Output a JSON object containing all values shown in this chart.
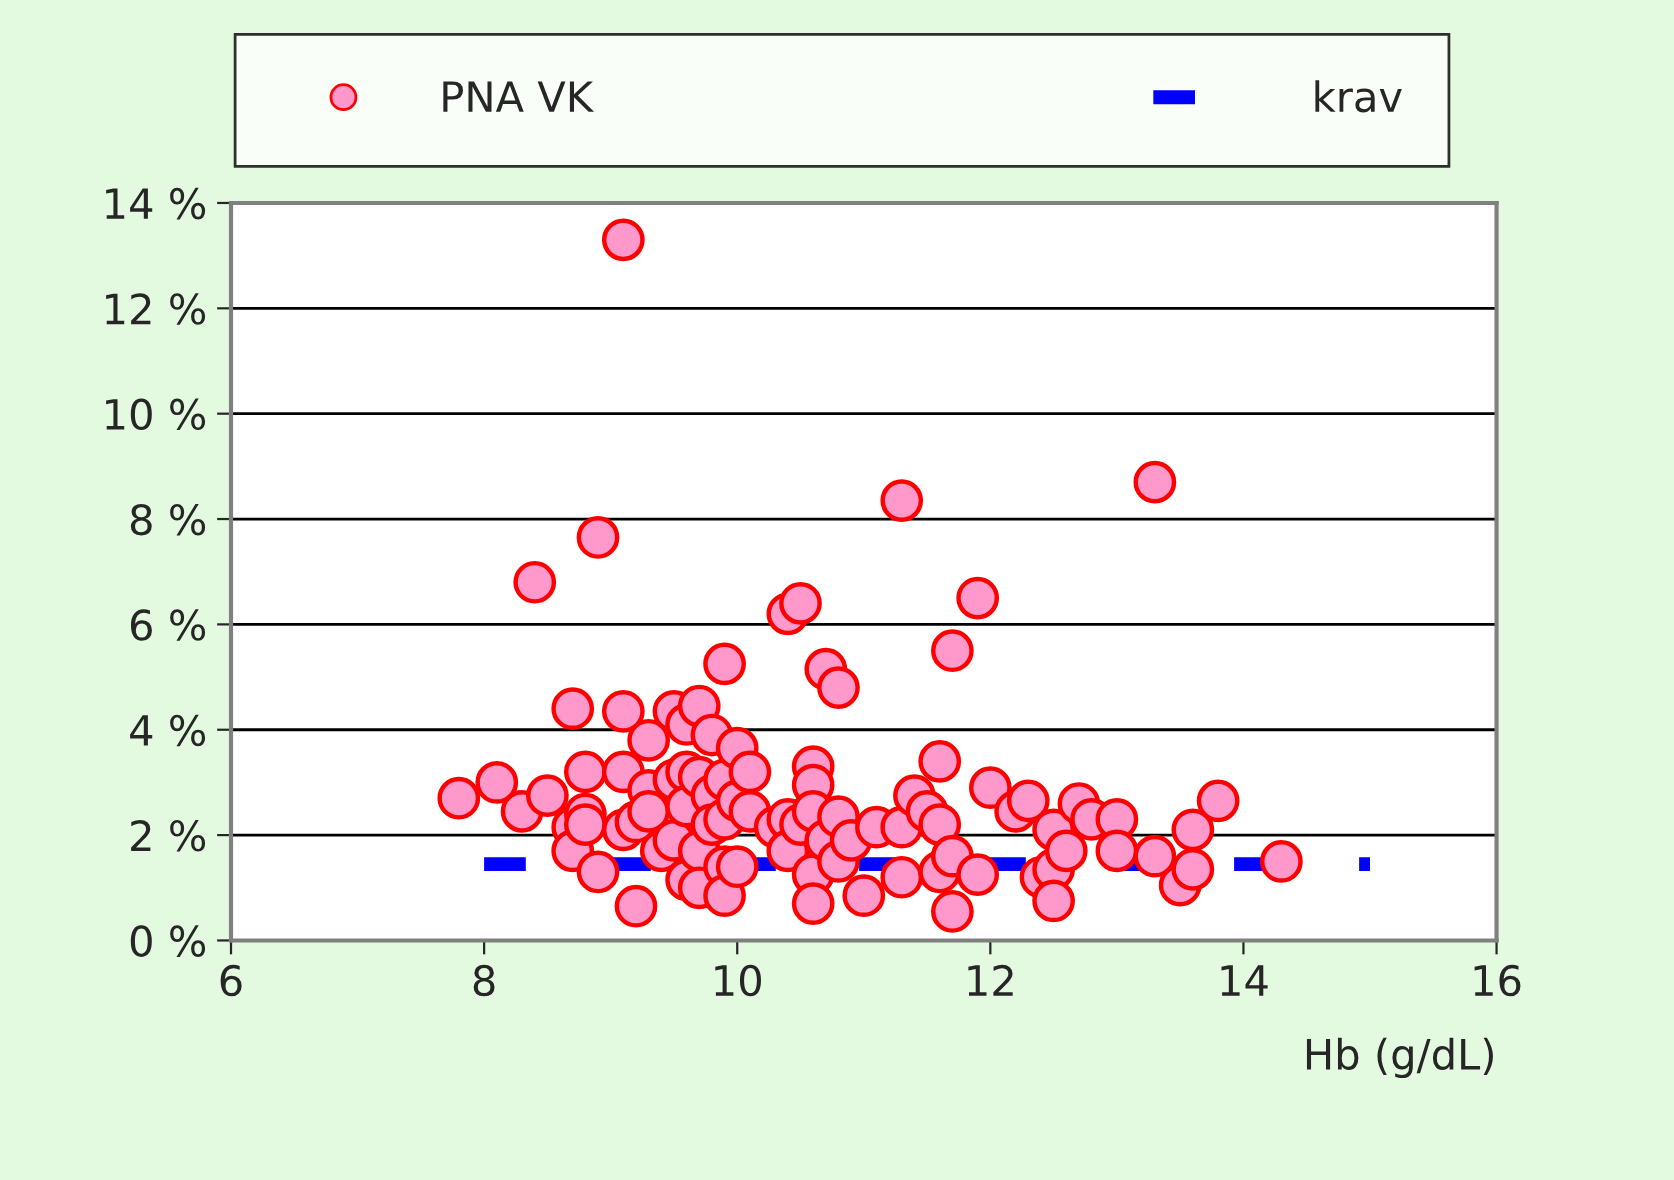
{
  "chart_data": {
    "type": "scatter",
    "xlabel": "Hb (g/dL)",
    "xlim": [
      6,
      16
    ],
    "xticks": [
      6,
      8,
      10,
      12,
      14,
      16
    ],
    "ylim": [
      0,
      14
    ],
    "yticks": [
      {
        "value": 0,
        "label": "0 %"
      },
      {
        "value": 2,
        "label": "2 %"
      },
      {
        "value": 4,
        "label": "4 %"
      },
      {
        "value": 6,
        "label": "6 %"
      },
      {
        "value": 8,
        "label": "8 %"
      },
      {
        "value": 10,
        "label": "10 %"
      },
      {
        "value": 12,
        "label": "12 %"
      },
      {
        "value": 14,
        "label": "14 %"
      }
    ],
    "grid": "y",
    "legend": "top",
    "series": [
      {
        "name": "PNA VK",
        "color": "#ff99cc",
        "marker": "circle",
        "x": [
          7.8,
          8.1,
          8.3,
          8.4,
          8.5,
          8.7,
          8.7,
          8.7,
          8.8,
          8.8,
          8.8,
          8.9,
          8.9,
          9.1,
          9.1,
          9.1,
          9.1,
          9.2,
          9.2,
          9.3,
          9.3,
          9.3,
          9.4,
          9.5,
          9.5,
          9.5,
          9.6,
          9.6,
          9.6,
          9.6,
          9.7,
          9.7,
          9.7,
          9.7,
          9.8,
          9.8,
          9.8,
          9.9,
          9.9,
          9.9,
          9.9,
          9.9,
          10.0,
          10.0,
          10.0,
          10.1,
          10.1,
          10.3,
          10.4,
          10.4,
          10.4,
          10.5,
          10.5,
          10.6,
          10.6,
          10.6,
          10.6,
          10.6,
          10.7,
          10.7,
          10.8,
          10.8,
          10.8,
          10.9,
          11.0,
          11.1,
          11.3,
          11.3,
          11.3,
          11.4,
          11.5,
          11.6,
          11.6,
          11.6,
          11.7,
          11.7,
          11.7,
          11.9,
          11.9,
          12.0,
          12.2,
          12.3,
          12.4,
          12.5,
          12.5,
          12.5,
          12.6,
          12.7,
          12.8,
          13.0,
          13.0,
          13.3,
          13.3,
          13.5,
          13.6,
          13.6,
          13.8,
          14.3
        ],
        "values": [
          2.7,
          3.0,
          2.45,
          6.8,
          2.75,
          4.4,
          2.15,
          1.7,
          3.2,
          2.4,
          2.2,
          7.65,
          1.3,
          4.35,
          3.2,
          2.1,
          13.3,
          0.65,
          2.25,
          3.8,
          2.85,
          2.45,
          1.7,
          4.35,
          3.05,
          1.9,
          4.1,
          3.2,
          2.55,
          1.15,
          4.45,
          3.1,
          1.7,
          1.0,
          3.9,
          2.75,
          2.2,
          5.25,
          3.05,
          2.3,
          1.4,
          0.85,
          3.65,
          2.65,
          1.4,
          3.2,
          2.45,
          2.15,
          6.2,
          2.3,
          1.7,
          6.4,
          2.2,
          3.3,
          2.95,
          2.45,
          1.25,
          0.7,
          5.15,
          1.9,
          4.8,
          2.35,
          1.5,
          1.9,
          0.85,
          2.15,
          8.35,
          2.15,
          1.2,
          2.75,
          2.45,
          3.4,
          2.2,
          1.3,
          5.5,
          1.6,
          0.55,
          6.5,
          1.25,
          2.9,
          2.45,
          2.65,
          1.2,
          2.1,
          1.35,
          0.75,
          1.7,
          2.6,
          2.3,
          2.3,
          1.7,
          8.7,
          1.6,
          1.05,
          1.35,
          2.1,
          2.65,
          1.5
        ]
      },
      {
        "name": "krav",
        "type": "line",
        "color": "#0000ff",
        "line_style": "dashed",
        "marker": "none",
        "x": [
          8,
          15
        ],
        "values": [
          1.45,
          1.45
        ]
      }
    ]
  }
}
